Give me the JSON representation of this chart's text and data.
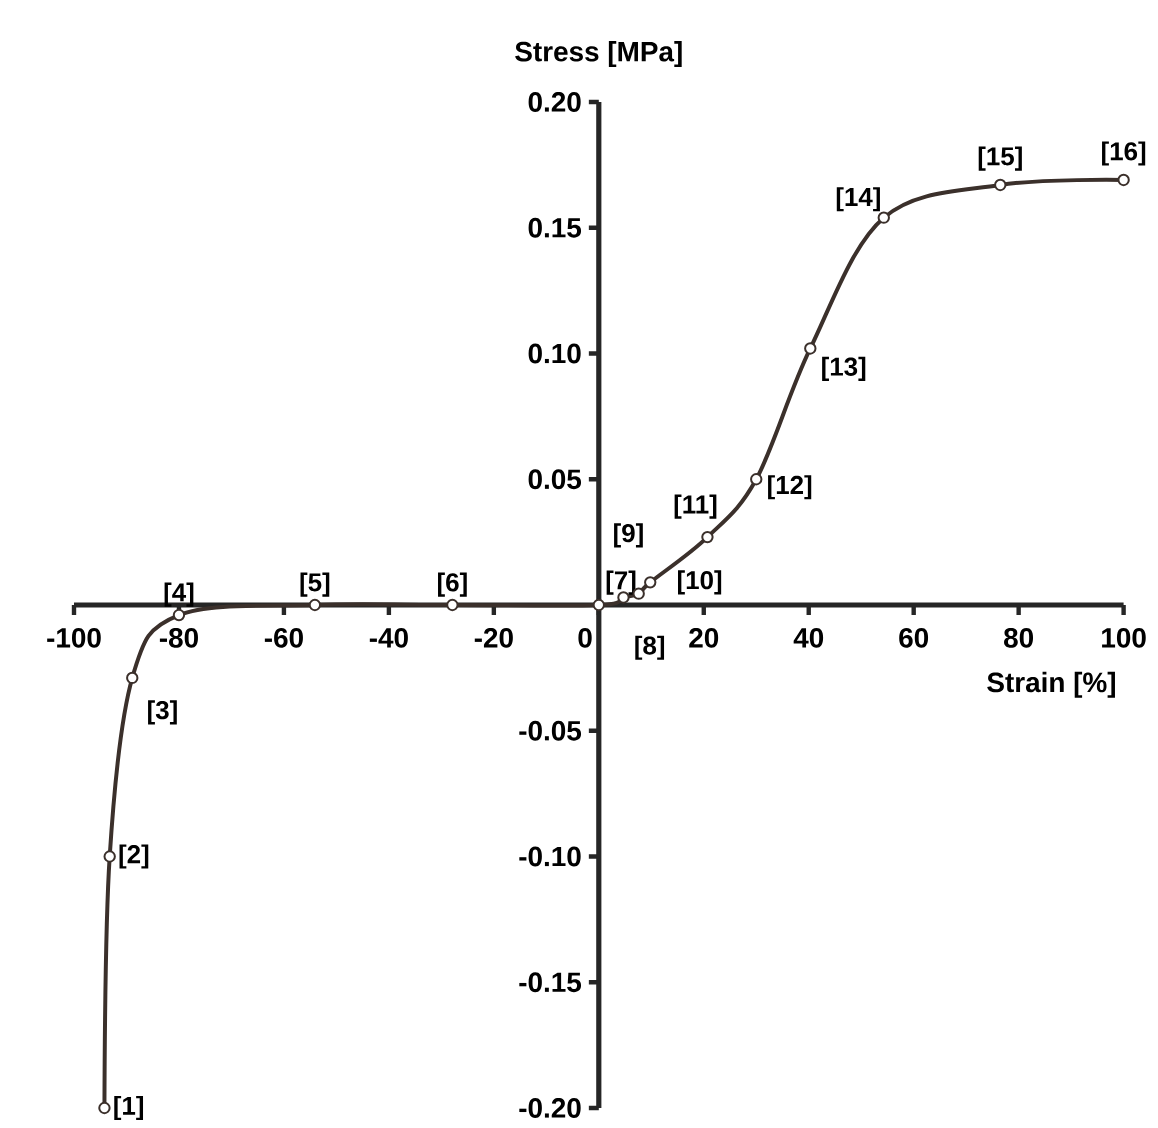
{
  "chart_data": {
    "type": "line",
    "xlabel": "Strain [%]",
    "ylabel": "Stress [MPa]",
    "x": [
      -94.2,
      -93.2,
      -88.9,
      -80,
      -54.1,
      -27.9,
      0,
      4.7,
      7.6,
      9.8,
      20.7,
      30,
      40.3,
      54.3,
      76.5,
      100
    ],
    "series": [
      {
        "color": "#3b302b",
        "values": [
          -0.2,
          -0.1,
          -0.029,
          -0.004,
          0,
          0,
          0,
          0.003,
          0.0045,
          0.009,
          0.027,
          0.05,
          0.102,
          0.154,
          0.167,
          0.169
        ]
      }
    ],
    "marker": "circle",
    "line_style": "solid",
    "xlim": [
      -100,
      100
    ],
    "ylim": [
      -0.2,
      0.2
    ],
    "xticks": [
      -100,
      -80,
      -60,
      -40,
      -20,
      0,
      20,
      40,
      60,
      80,
      100
    ],
    "yticks": [
      {
        "value": -0.2,
        "label": "-0.20"
      },
      {
        "value": -0.15,
        "label": "-0.15"
      },
      {
        "value": -0.1,
        "label": "-0.10"
      },
      {
        "value": -0.05,
        "label": "-0.05"
      },
      {
        "value": 0.05,
        "label": "0.05"
      },
      {
        "value": 0.1,
        "label": "0.10"
      },
      {
        "value": 0.15,
        "label": "0.15"
      },
      {
        "value": 0.2,
        "label": "0.20"
      }
    ],
    "annotations": [
      {
        "text": "[1]",
        "x": -94.2,
        "y": -0.2
      },
      {
        "text": "[2]",
        "x": -93.2,
        "y": -0.1
      },
      {
        "text": "[3]",
        "x": -88.9,
        "y": -0.029
      },
      {
        "text": "[4]",
        "x": -80,
        "y": -0.004
      },
      {
        "text": "[5]",
        "x": -54.1,
        "y": 0
      },
      {
        "text": "[6]",
        "x": -27.9,
        "y": 0
      },
      {
        "text": "[7]",
        "x": 0,
        "y": 0
      },
      {
        "text": "[8]",
        "x": 4.7,
        "y": 0.003
      },
      {
        "text": "[9]",
        "x": 7.6,
        "y": 0.0045
      },
      {
        "text": "[10]",
        "x": 9.8,
        "y": 0.009
      },
      {
        "text": "[11]",
        "x": 20.7,
        "y": 0.027
      },
      {
        "text": "[12]",
        "x": 30,
        "y": 0.05
      },
      {
        "text": "[13]",
        "x": 40.3,
        "y": 0.102
      },
      {
        "text": "[14]",
        "x": 54.3,
        "y": 0.154
      },
      {
        "text": "[15]",
        "x": 76.5,
        "y": 0.167
      },
      {
        "text": "[16]",
        "x": 100,
        "y": 0.169
      }
    ]
  }
}
